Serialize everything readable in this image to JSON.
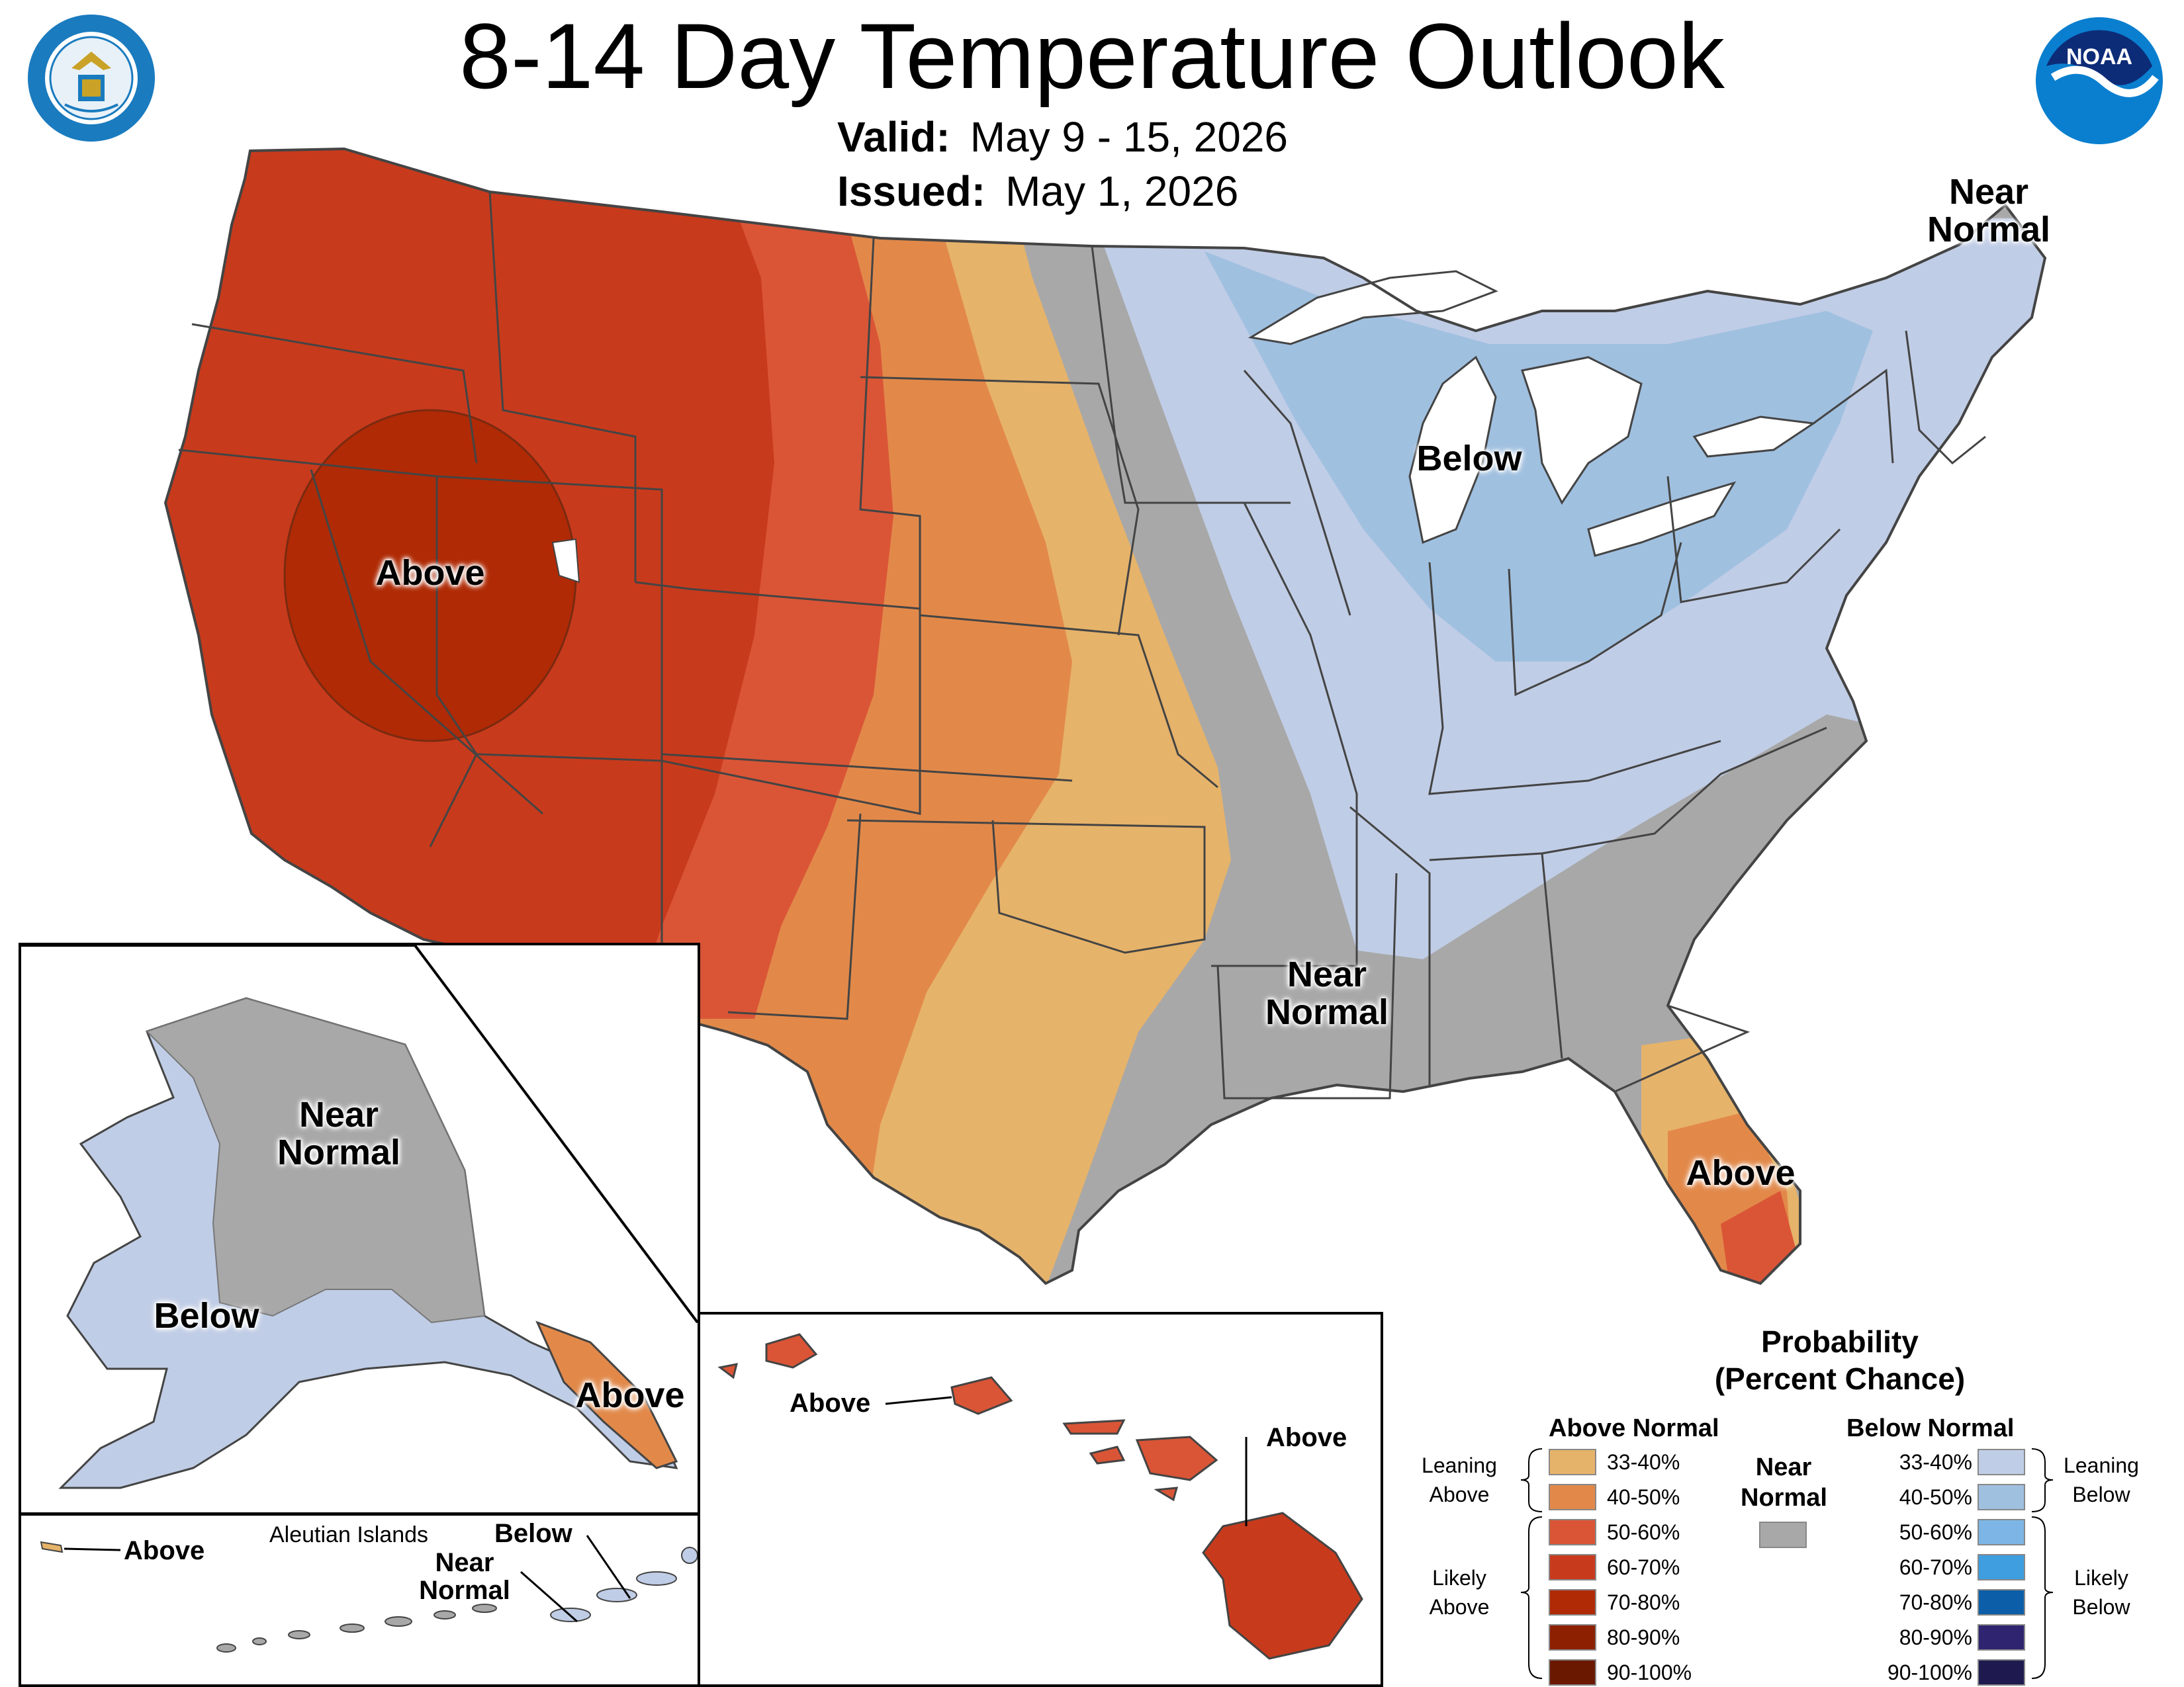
{
  "title": "8-14 Day Temperature Outlook",
  "valid": {
    "label": "Valid:",
    "value": "May 9 - 15, 2026"
  },
  "issued": {
    "label": "Issued:",
    "value": "May 1, 2026"
  },
  "logos": {
    "left": "Department of Commerce seal",
    "right": "NOAA logo",
    "right_text": "NOAA"
  },
  "map_labels": {
    "west": "Above",
    "great_lakes": "Below",
    "northeast": "Near Normal",
    "south": "Near Normal",
    "florida": "Above",
    "alaska_center": "Near Normal",
    "alaska_west": "Below",
    "alaska_panhandle": "Above",
    "aleutian_title": "Aleutian Islands",
    "aleutian_above": "Above",
    "aleutian_near": "Near Normal",
    "aleutian_below": "Below",
    "hawaii_west": "Above",
    "hawaii_east": "Above"
  },
  "colors": {
    "above_33_40": "#E6B36A",
    "above_40_50": "#E2894A",
    "above_50_60": "#DA5536",
    "above_60_70": "#C83A1C",
    "above_70_80": "#B02A05",
    "above_80_90": "#8C2000",
    "above_90_100": "#6A1800",
    "near_normal": "#A8A8A8",
    "below_33_40": "#C0CDE6",
    "below_40_50": "#A0C0E0",
    "below_50_60": "#7DB6E6",
    "below_60_70": "#3E9EE0",
    "below_70_80": "#0C5EA8",
    "below_80_90": "#2E2470",
    "below_90_100": "#1E1A50",
    "lakes": "#ffffff",
    "border": "#444444"
  },
  "legend": {
    "title": "Probability (Percent Chance)",
    "title_line1": "Probability",
    "title_line2": "(Percent Chance)",
    "above_header": "Above Normal",
    "below_header": "Below Normal",
    "near_header": "Near Normal",
    "near_line1": "Near",
    "near_line2": "Normal",
    "ranges": [
      "33-40%",
      "40-50%",
      "50-60%",
      "60-70%",
      "70-80%",
      "80-90%",
      "90-100%"
    ],
    "leaning_above": [
      "Leaning",
      "Above"
    ],
    "likely_above": [
      "Likely",
      "Above"
    ],
    "leaning_below": [
      "Leaning",
      "Below"
    ],
    "likely_below": [
      "Likely",
      "Below"
    ]
  }
}
